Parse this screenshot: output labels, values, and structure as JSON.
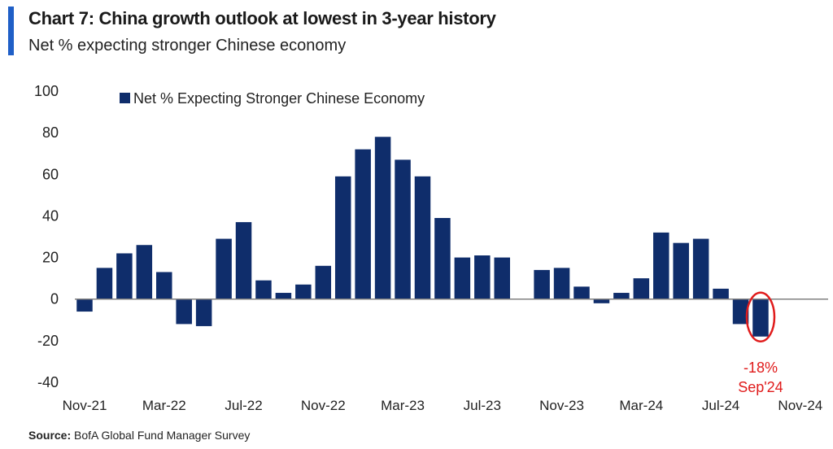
{
  "header": {
    "title": "Chart 7: China growth outlook at lowest in 3-year history",
    "subtitle": "Net % expecting stronger Chinese economy"
  },
  "footer": {
    "source_label": "Source:",
    "source_text": "BofA Global Fund Manager Survey"
  },
  "colors": {
    "bar": "#0f2d6b",
    "accent": "#1f5fc7",
    "annotation": "#e01b1b",
    "zero_line": "#808080"
  },
  "chart_data": {
    "type": "bar",
    "categories": [
      "Nov-21",
      "Dec-21",
      "Jan-22",
      "Feb-22",
      "Mar-22",
      "Apr-22",
      "May-22",
      "Jun-22",
      "Jul-22",
      "Aug-22",
      "Sep-22",
      "Oct-22",
      "Nov-22",
      "Dec-22",
      "Jan-23",
      "Feb-23",
      "Mar-23",
      "Apr-23",
      "May-23",
      "Jun-23",
      "Jul-23",
      "Aug-23",
      "Sep-23",
      "Oct-23",
      "Nov-23",
      "Dec-23",
      "Jan-24",
      "Feb-24",
      "Mar-24",
      "Apr-24",
      "May-24",
      "Jun-24",
      "Jul-24",
      "Aug-24",
      "Sep-24",
      "Oct-24",
      "Nov-24"
    ],
    "series": [
      {
        "name": "Net % Expecting Stronger Chinese Economy",
        "values": [
          -6,
          15,
          22,
          26,
          13,
          -12,
          -13,
          29,
          37,
          9,
          3,
          7,
          16,
          59,
          72,
          78,
          67,
          59,
          39,
          20,
          21,
          20,
          null,
          14,
          15,
          6,
          -2,
          3,
          10,
          32,
          27,
          29,
          5,
          -12,
          -18,
          null,
          null
        ]
      }
    ],
    "x_tick_labels": [
      "Nov-21",
      "Mar-22",
      "Jul-22",
      "Nov-22",
      "Mar-23",
      "Jul-23",
      "Nov-23",
      "Mar-24",
      "Jul-24",
      "Nov-24"
    ],
    "y_ticks": [
      100,
      80,
      60,
      40,
      20,
      0,
      -20,
      -40
    ],
    "ylim": [
      -40,
      100
    ],
    "xlabel": "",
    "ylabel": "",
    "legend_position": "top-left",
    "grid": false,
    "annotation": {
      "value_label": "-18%",
      "date_label": "Sep'24",
      "category": "Sep-24"
    }
  }
}
